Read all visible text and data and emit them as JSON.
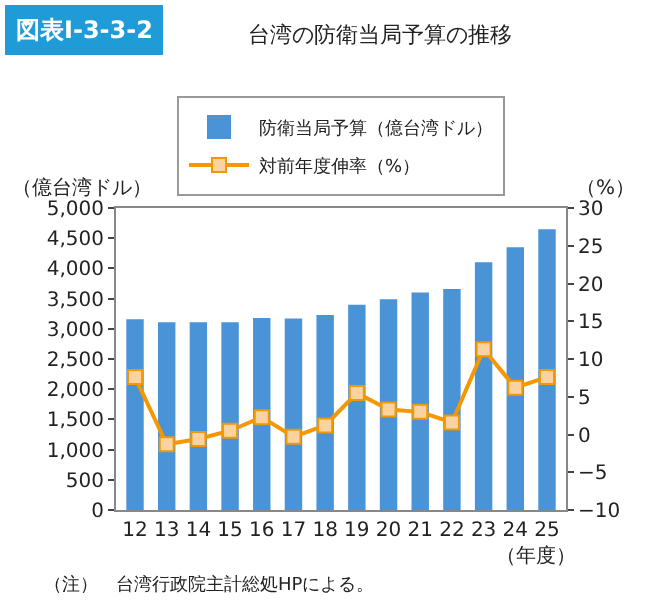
{
  "chart_data": {
    "type": "bar",
    "title": "図表Ⅰ-3-3-2",
    "subtitle": "台湾の防衛当局予算の推移",
    "ylabel": "（億台湾ドル）",
    "y2label": "（%）",
    "xlabel": "（年度）",
    "categories": [
      "12",
      "13",
      "14",
      "15",
      "16",
      "17",
      "18",
      "19",
      "20",
      "21",
      "22",
      "23",
      "24",
      "25"
    ],
    "series": [
      {
        "name": "防衛当局予算（億台湾ドル）",
        "color": "#4a93d6",
        "values": [
          3160,
          3110,
          3110,
          3110,
          3180,
          3170,
          3230,
          3400,
          3490,
          3600,
          3660,
          4100,
          4350,
          4650
        ]
      },
      {
        "name": "対前年度伸率（%）",
        "type": "line",
        "axis": "y2",
        "color": "#f39800",
        "marker": "square",
        "values": [
          7.6,
          -1.3,
          -0.6,
          0.5,
          2.3,
          -0.3,
          1.2,
          5.5,
          3.3,
          3.0,
          1.6,
          11.3,
          6.2,
          7.6
        ]
      }
    ],
    "ylim": [
      0,
      5000
    ],
    "yticks": [
      {
        "value": 0,
        "label": "0"
      },
      {
        "value": 500,
        "label": "500"
      },
      {
        "value": 1000,
        "label": "1,000"
      },
      {
        "value": 1500,
        "label": "1,500"
      },
      {
        "value": 2000,
        "label": "2,000"
      },
      {
        "value": 2500,
        "label": "2,500"
      },
      {
        "value": 3000,
        "label": "3,000"
      },
      {
        "value": 3500,
        "label": "3,500"
      },
      {
        "value": 4000,
        "label": "4,000"
      },
      {
        "value": 4500,
        "label": "4,500"
      },
      {
        "value": 5000,
        "label": "5,000"
      }
    ],
    "y2lim": [
      -10,
      30
    ],
    "y2ticks": [
      {
        "value": -10,
        "label": "−10"
      },
      {
        "value": -5,
        "label": "−5"
      },
      0,
      5,
      10,
      15,
      20,
      25,
      30
    ],
    "legend": "top",
    "annotations": [
      "（注）　台湾行政院主計総処HPによる。"
    ]
  }
}
